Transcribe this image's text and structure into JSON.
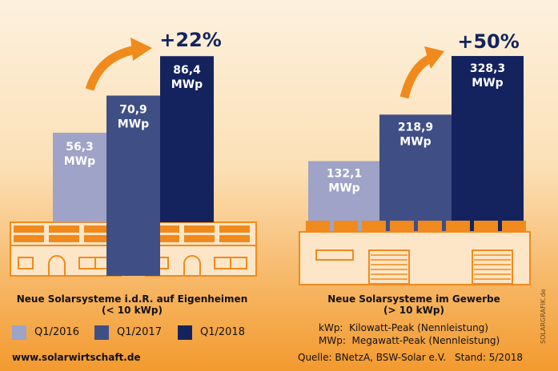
{
  "colors": {
    "q1_2016": "#9ea3c7",
    "q1_2017": "#3f4f85",
    "q1_2018": "#14235e",
    "accent": "#f18a1c",
    "house": "#fde6c7",
    "house_line": "#f18a1c"
  },
  "chart_data": [
    {
      "type": "bar",
      "categories": [
        "Q1/2016",
        "Q1/2017",
        "Q1/2018"
      ],
      "values": [
        56.3,
        70.9,
        86.4
      ],
      "value_labels": [
        "56,3",
        "70,9",
        "86,4"
      ],
      "unit": "MWp",
      "growth": "+22%",
      "title": "Neue Solarsysteme i.d.R. auf Eigenheimen",
      "subtitle": "(< 10 kWp)"
    },
    {
      "type": "bar",
      "categories": [
        "Q1/2016",
        "Q1/2017",
        "Q1/2018"
      ],
      "values": [
        132.1,
        218.9,
        328.3
      ],
      "value_labels": [
        "132,1",
        "218,9",
        "328,3"
      ],
      "unit": "MWp",
      "growth": "+50%",
      "title": "Neue Solarsysteme im Gewerbe",
      "subtitle": "(> 10 kWp)"
    }
  ],
  "legend": [
    "Q1/2016",
    "Q1/2017",
    "Q1/2018"
  ],
  "notes": {
    "kwp": "kWp:  Kilowatt-Peak (Nennleistung)",
    "mwp": "MWp:  Megawatt-Peak (Nennleistung)"
  },
  "footer": {
    "website": "www.solarwirtschaft.de",
    "source": "Quelle: BNetzA, BSW-Solar e.V.",
    "date": "Stand: 5/2018",
    "watermark": "SOLARGRAFIK.de"
  }
}
